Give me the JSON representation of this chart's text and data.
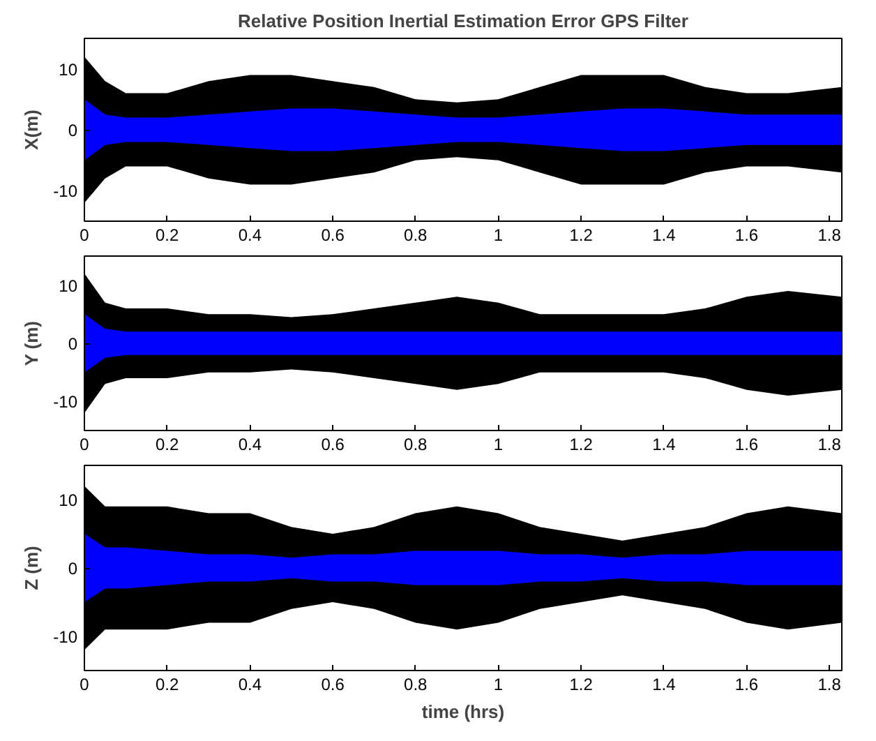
{
  "chart_data": [
    {
      "type": "area",
      "title": "Relative Position Inertial Estimation Error GPS Filter",
      "ylabel": "X(m)",
      "xlim": [
        0,
        1.83
      ],
      "xticks": [
        0,
        0.2,
        0.4,
        0.6,
        0.8,
        1,
        1.2,
        1.4,
        1.6,
        1.8
      ],
      "ylim": [
        -15,
        15
      ],
      "yticks": [
        -10,
        0,
        10
      ],
      "x": [
        0,
        0.05,
        0.1,
        0.2,
        0.3,
        0.4,
        0.5,
        0.6,
        0.7,
        0.8,
        0.9,
        1.0,
        1.1,
        1.2,
        1.3,
        1.4,
        1.5,
        1.6,
        1.7,
        1.83
      ],
      "series": [
        {
          "color": "#000000",
          "values": [
            12,
            8,
            6,
            6,
            8,
            9,
            9,
            8,
            7,
            5,
            4.5,
            5,
            7,
            9,
            9,
            9,
            7,
            6,
            6,
            7
          ]
        },
        {
          "color": "#000000",
          "values": [
            -12,
            -8,
            -6,
            -6,
            -8,
            -9,
            -9,
            -8,
            -7,
            -5,
            -4.5,
            -5,
            -7,
            -9,
            -9,
            -9,
            -7,
            -6,
            -6,
            -7
          ]
        },
        {
          "color": "#0000ff",
          "values": [
            5,
            2.5,
            2,
            2,
            2.5,
            3,
            3.5,
            3.5,
            3,
            2.5,
            2,
            2,
            2.5,
            3,
            3.5,
            3.5,
            3,
            2.5,
            2.5,
            2.5
          ]
        },
        {
          "color": "#0000ff",
          "values": [
            -5,
            -2.5,
            -2,
            -2,
            -2.5,
            -3,
            -3.5,
            -3.5,
            -3,
            -2.5,
            -2,
            -2,
            -2.5,
            -3,
            -3.5,
            -3.5,
            -3,
            -2.5,
            -2.5,
            -2.5
          ]
        }
      ]
    },
    {
      "type": "area",
      "ylabel": "Y (m)",
      "xlim": [
        0,
        1.83
      ],
      "xticks": [
        0,
        0.2,
        0.4,
        0.6,
        0.8,
        1,
        1.2,
        1.4,
        1.6,
        1.8
      ],
      "ylim": [
        -15,
        15
      ],
      "yticks": [
        -10,
        0,
        10
      ],
      "x": [
        0,
        0.05,
        0.1,
        0.2,
        0.3,
        0.4,
        0.5,
        0.6,
        0.7,
        0.8,
        0.9,
        1.0,
        1.1,
        1.2,
        1.3,
        1.4,
        1.5,
        1.6,
        1.7,
        1.83
      ],
      "series": [
        {
          "color": "#000000",
          "values": [
            12,
            7,
            6,
            6,
            5,
            5,
            4.5,
            5,
            6,
            7,
            8,
            7,
            5,
            5,
            5,
            5,
            6,
            8,
            9,
            8
          ]
        },
        {
          "color": "#000000",
          "values": [
            -12,
            -7,
            -6,
            -6,
            -5,
            -5,
            -4.5,
            -5,
            -6,
            -7,
            -8,
            -7,
            -5,
            -5,
            -5,
            -5,
            -6,
            -8,
            -9,
            -8
          ]
        },
        {
          "color": "#0000ff",
          "values": [
            5,
            2.5,
            2,
            2,
            2,
            2,
            2,
            2,
            2,
            2,
            2,
            2,
            2,
            2,
            2,
            2,
            2,
            2,
            2,
            2
          ]
        },
        {
          "color": "#0000ff",
          "values": [
            -5,
            -2.5,
            -2,
            -2,
            -2,
            -2,
            -2,
            -2,
            -2,
            -2,
            -2,
            -2,
            -2,
            -2,
            -2,
            -2,
            -2,
            -2,
            -2,
            -2
          ]
        }
      ]
    },
    {
      "type": "area",
      "ylabel": "Z (m)",
      "xlabel": "time (hrs)",
      "xlim": [
        0,
        1.83
      ],
      "xticks": [
        0,
        0.2,
        0.4,
        0.6,
        0.8,
        1,
        1.2,
        1.4,
        1.6,
        1.8
      ],
      "ylim": [
        -15,
        15
      ],
      "yticks": [
        -10,
        0,
        10
      ],
      "x": [
        0,
        0.05,
        0.1,
        0.2,
        0.3,
        0.4,
        0.5,
        0.6,
        0.7,
        0.8,
        0.9,
        1.0,
        1.1,
        1.2,
        1.3,
        1.4,
        1.5,
        1.6,
        1.7,
        1.83
      ],
      "series": [
        {
          "color": "#000000",
          "values": [
            12,
            9,
            9,
            9,
            8,
            8,
            6,
            5,
            6,
            8,
            9,
            8,
            6,
            5,
            4,
            5,
            6,
            8,
            9,
            8
          ]
        },
        {
          "color": "#000000",
          "values": [
            -12,
            -9,
            -9,
            -9,
            -8,
            -8,
            -6,
            -5,
            -6,
            -8,
            -9,
            -8,
            -6,
            -5,
            -4,
            -5,
            -6,
            -8,
            -9,
            -8
          ]
        },
        {
          "color": "#0000ff",
          "values": [
            5,
            3,
            3,
            2.5,
            2,
            2,
            1.5,
            2,
            2,
            2.5,
            2.5,
            2.5,
            2,
            2,
            1.5,
            2,
            2,
            2.5,
            2.5,
            2.5
          ]
        },
        {
          "color": "#0000ff",
          "values": [
            -5,
            -3,
            -3,
            -2.5,
            -2,
            -2,
            -1.5,
            -2,
            -2,
            -2.5,
            -2.5,
            -2.5,
            -2,
            -2,
            -1.5,
            -2,
            -2,
            -2.5,
            -2.5,
            -2.5
          ]
        }
      ]
    }
  ]
}
